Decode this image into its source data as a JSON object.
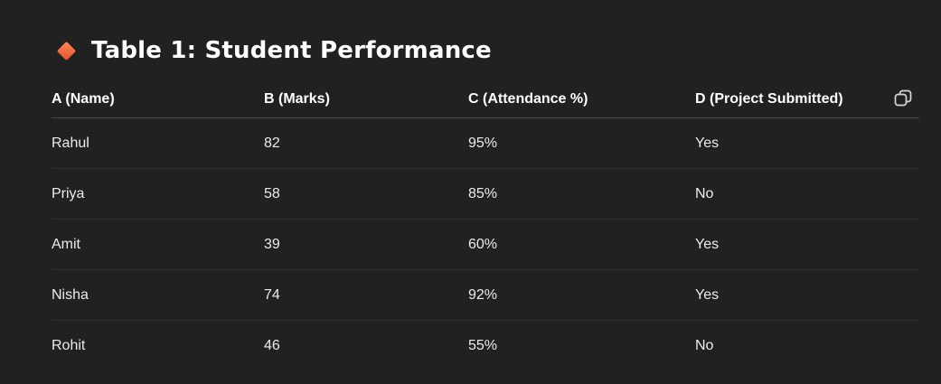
{
  "heading": {
    "icon": "orange-diamond-icon",
    "title": "Table 1: Student Performance"
  },
  "table": {
    "columns": [
      "A (Name)",
      "B (Marks)",
      "C (Attendance %)",
      "D (Project Submitted)"
    ],
    "rows": [
      [
        "Rahul",
        "82",
        "95%",
        "Yes"
      ],
      [
        "Priya",
        "58",
        "85%",
        "No"
      ],
      [
        "Amit",
        "39",
        "60%",
        "Yes"
      ],
      [
        "Nisha",
        "74",
        "92%",
        "Yes"
      ],
      [
        "Rohit",
        "46",
        "55%",
        "No"
      ]
    ]
  },
  "toolbar": {
    "copy_icon": "copy-icon"
  },
  "colors": {
    "background": "#212121",
    "text": "#ececec",
    "accent": "#f26a3d"
  }
}
